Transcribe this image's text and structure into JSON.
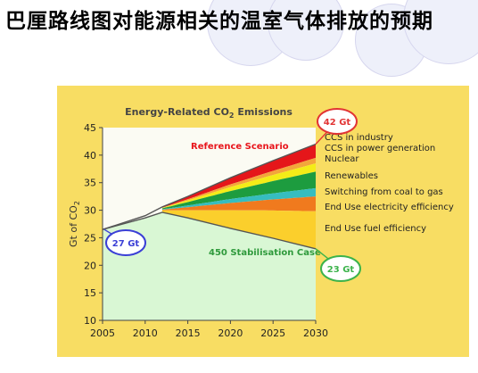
{
  "slide": {
    "title": "巴厘路线图对能源相关的温室气体排放的预期"
  },
  "chart_data": {
    "type": "area",
    "title": "Energy-Related CO2 Emissions",
    "ylabel": "Gt of CO2",
    "xlabel": "",
    "xlim": [
      2005,
      2030
    ],
    "ylim": [
      10,
      45
    ],
    "x_ticks": [
      2005,
      2010,
      2015,
      2020,
      2025,
      2030
    ],
    "y_ticks": [
      10,
      15,
      20,
      25,
      30,
      35,
      40,
      45
    ],
    "grid": false,
    "reference_scenario": {
      "label": "Reference Scenario",
      "x": [
        2005,
        2010,
        2012,
        2015,
        2020,
        2025,
        2030
      ],
      "y": [
        26.5,
        29.0,
        30.6,
        32.5,
        35.9,
        39.0,
        42.0
      ]
    },
    "stabilisation_case": {
      "label": "450 Stabilisation Case",
      "x": [
        2005,
        2010,
        2012,
        2015,
        2020,
        2025,
        2030
      ],
      "y": [
        26.5,
        28.6,
        29.6,
        28.6,
        26.7,
        24.9,
        23.0
      ]
    },
    "wedges": [
      {
        "name": "CCS in industry",
        "color": "#e5161a",
        "y2030": [
          39.5,
          42.0
        ]
      },
      {
        "name": "CCS in power generation",
        "color": "#f3a63b",
        "y2030": [
          38.5,
          39.5
        ]
      },
      {
        "name": "Nuclear",
        "color": "#f4ec18",
        "y2030": [
          37.0,
          38.5
        ]
      },
      {
        "name": "Renewables",
        "color": "#1d9c3f",
        "y2030": [
          34.0,
          37.0
        ]
      },
      {
        "name": "Switching from coal to gas",
        "color": "#36bdbf",
        "y2030": [
          32.5,
          34.0
        ]
      },
      {
        "name": "End Use electricity efficiency",
        "color": "#f07a1e",
        "y2030": [
          29.8,
          32.5
        ]
      },
      {
        "name": "End Use fuel efficiency",
        "color": "#fbcf2c",
        "y2030": [
          23.0,
          29.8
        ]
      }
    ],
    "annotations": [
      {
        "text": "42 Gt",
        "x": 2030,
        "y": 42.0
      },
      {
        "text": "27 Gt",
        "x": 2005,
        "y": 26.5
      },
      {
        "text": "23 Gt",
        "x": 2030,
        "y": 23.0
      }
    ],
    "colors": {
      "panel": "#f8dd63",
      "stabilisation_fill": "#d9f7d4",
      "callout_red": "#e23434",
      "callout_blue": "#3b3fd6",
      "callout_green": "#3cb34b",
      "axis": "#444444"
    }
  }
}
